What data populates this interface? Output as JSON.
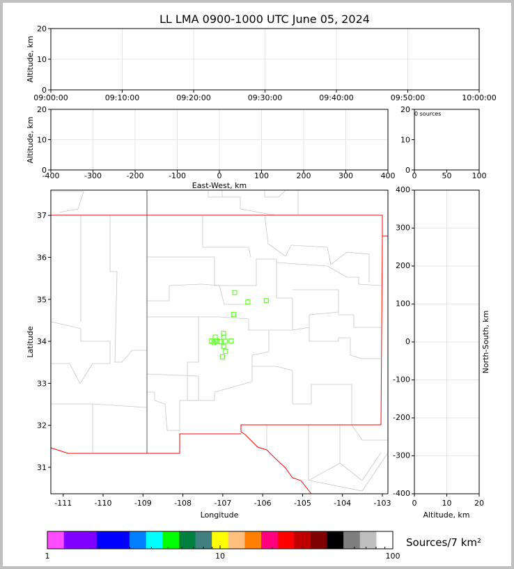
{
  "title": "LL LMA 0900-1000 UTC June 05, 2024",
  "chart_data": [
    {
      "type": "scatter",
      "panel": "altitude-time",
      "ylabel": "Altitude, km",
      "xlabel": "",
      "x_tick_labels": [
        "09:00:00",
        "09:10:00",
        "09:20:00",
        "09:30:00",
        "09:40:00",
        "09:50:00",
        "10:00:00"
      ],
      "y_ticks": [
        0,
        10,
        20
      ],
      "ylim": [
        0,
        20
      ],
      "grid": true,
      "points": []
    },
    {
      "type": "scatter",
      "panel": "altitude-eastwest",
      "ylabel": "Altitude, km",
      "xlabel": "East-West, km",
      "xlim": [
        -400,
        400
      ],
      "x_ticks": [
        -400,
        -300,
        -200,
        -100,
        0,
        100,
        200,
        300,
        400
      ],
      "y_ticks": [
        0,
        10,
        20
      ],
      "ylim": [
        0,
        20
      ],
      "grid": true,
      "points": []
    },
    {
      "type": "bar",
      "panel": "histogram",
      "annotation": "0 sources",
      "xlim": [
        0,
        100
      ],
      "x_ticks": [
        0,
        50,
        100
      ],
      "y_ticks": [
        0,
        10,
        20
      ],
      "ylim": [
        0,
        20
      ],
      "values": []
    },
    {
      "type": "scatter",
      "panel": "plan-view",
      "xlabel": "Longitude",
      "ylabel": "Latitude",
      "xlim": [
        -111.31,
        -102.86
      ],
      "ylim": [
        30.37,
        37.6
      ],
      "x_ticks": [
        -111,
        -110,
        -109,
        -108,
        -107,
        -106,
        -105,
        -104,
        -103
      ],
      "y_ticks": [
        31,
        32,
        33,
        34,
        35,
        36,
        37
      ],
      "marker_color": "#66ff33",
      "points": [
        {
          "lon": -106.7,
          "lat": 35.16
        },
        {
          "lon": -106.37,
          "lat": 34.94
        },
        {
          "lon": -105.91,
          "lat": 34.97
        },
        {
          "lon": -106.73,
          "lat": 34.64
        },
        {
          "lon": -106.98,
          "lat": 34.19
        },
        {
          "lon": -107.19,
          "lat": 34.1
        },
        {
          "lon": -106.98,
          "lat": 34.1
        },
        {
          "lon": -107.28,
          "lat": 34.01
        },
        {
          "lon": -107.15,
          "lat": 34.01
        },
        {
          "lon": -107.07,
          "lat": 33.99
        },
        {
          "lon": -106.94,
          "lat": 34.0
        },
        {
          "lon": -106.79,
          "lat": 34.01
        },
        {
          "lon": -107.22,
          "lat": 33.97
        },
        {
          "lon": -106.98,
          "lat": 33.88
        },
        {
          "lon": -106.93,
          "lat": 33.76
        },
        {
          "lon": -107.01,
          "lat": 33.63
        }
      ]
    },
    {
      "type": "scatter",
      "panel": "northsouth-altitude",
      "xlabel": "Altitude, km",
      "ylabel": "North-South, km",
      "xlim": [
        0,
        20
      ],
      "x_ticks": [
        0,
        10,
        20
      ],
      "ylim": [
        -400,
        400
      ],
      "y_ticks": [
        -400,
        -300,
        -200,
        -100,
        0,
        100,
        200,
        300,
        400
      ],
      "grid": true,
      "points": []
    }
  ],
  "colorbar": {
    "label": "Sources/7 km²",
    "scale": "log",
    "range": [
      1,
      100
    ],
    "tick_labels": [
      "1",
      "10",
      "100"
    ],
    "colors": [
      "#ff4cff",
      "#7f00ff",
      "#0000ff",
      "#007fff",
      "#00ffff",
      "#00ff00",
      "#007f3f",
      "#3f7f7f",
      "#ffff00",
      "#ffbf7f",
      "#ff7f00",
      "#ff007f",
      "#ff0000",
      "#bf0000",
      "#7f0000",
      "#000000",
      "#7f7f7f",
      "#bfbfbf",
      "#ffffff"
    ]
  }
}
